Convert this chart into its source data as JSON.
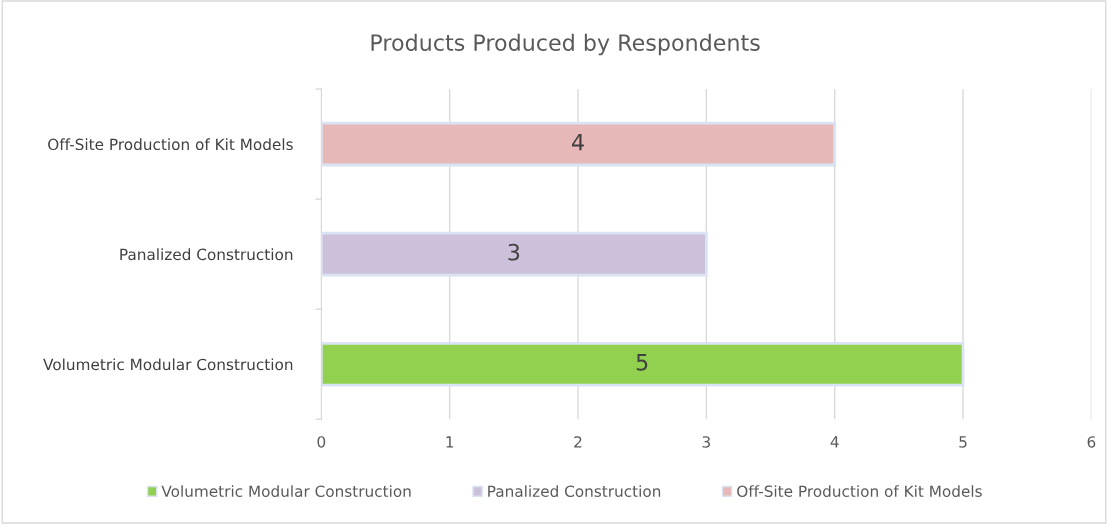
{
  "chart_data": {
    "type": "bar",
    "orientation": "horizontal",
    "title": "Products Produced by Respondents",
    "categories": [
      "Off-Site Production of Kit Models",
      "Panalized Construction",
      "Volumetric Modular Construction"
    ],
    "series": [
      {
        "name": "Volumetric Modular Construction",
        "color": "#92d050",
        "values": [
          null,
          null,
          5
        ]
      },
      {
        "name": "Panalized Construction",
        "color": "#ccc0da",
        "values": [
          null,
          3,
          null
        ]
      },
      {
        "name": "Off-Site Production of Kit Models",
        "color": "#e6b9b8",
        "values": [
          4,
          null,
          null
        ]
      }
    ],
    "xlim": [
      0,
      6
    ],
    "xticks": [
      0,
      1,
      2,
      3,
      4,
      5,
      6
    ],
    "grid": "x",
    "legend": "bottom",
    "data_labels": true
  }
}
